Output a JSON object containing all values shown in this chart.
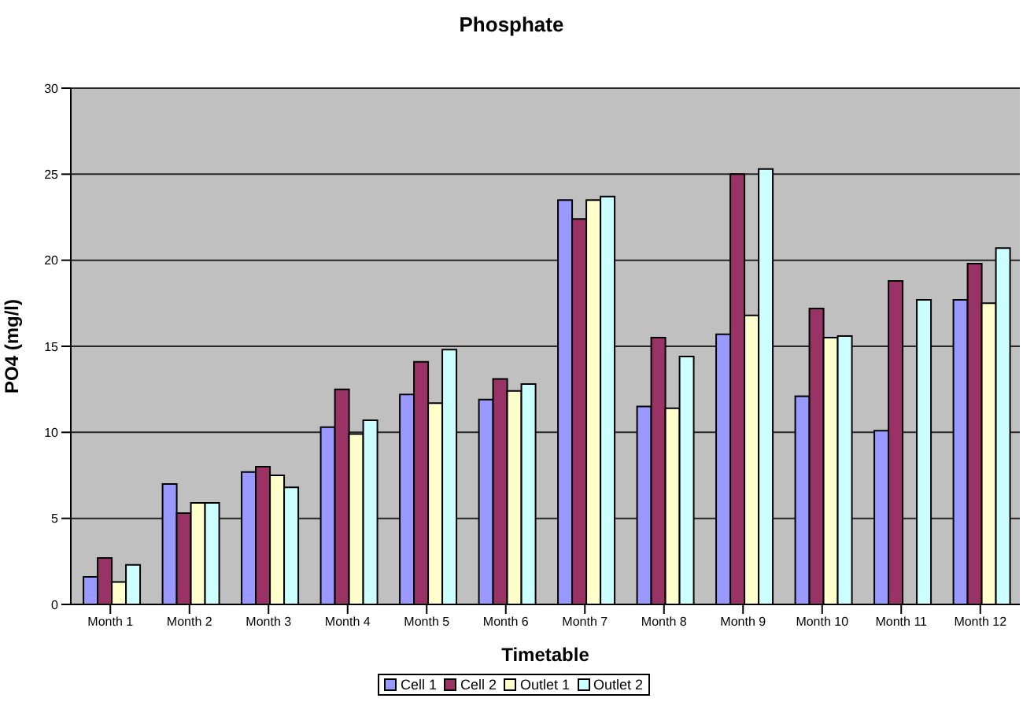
{
  "chart_data": {
    "type": "bar",
    "title": "Phosphate",
    "xlabel": "Timetable",
    "ylabel": "PO4 (mg/l)",
    "categories": [
      "Month 1",
      "Month 2",
      "Month 3",
      "Month 4",
      "Month 5",
      "Month 6",
      "Month 7",
      "Month 8",
      "Month 9",
      "Month 10",
      "Month 11",
      "Month 12"
    ],
    "series": [
      {
        "name": "Cell 1",
        "color": "#9999ff",
        "values": [
          1.6,
          7.0,
          7.7,
          10.3,
          12.2,
          11.9,
          23.5,
          11.5,
          15.7,
          12.1,
          10.1,
          17.7
        ]
      },
      {
        "name": "Cell 2",
        "color": "#993366",
        "values": [
          2.7,
          5.3,
          8.0,
          12.5,
          14.1,
          13.1,
          22.4,
          15.5,
          25.0,
          17.2,
          18.8,
          19.8
        ]
      },
      {
        "name": "Outlet 1",
        "color": "#ffffcc",
        "values": [
          1.3,
          5.9,
          7.5,
          9.9,
          11.7,
          12.4,
          23.5,
          11.4,
          16.8,
          15.5,
          null,
          17.5
        ]
      },
      {
        "name": "Outlet 2",
        "color": "#ccffff",
        "values": [
          2.3,
          5.9,
          6.8,
          10.7,
          14.8,
          12.8,
          23.7,
          14.4,
          25.3,
          15.6,
          17.7,
          20.7
        ]
      }
    ],
    "ylim": [
      0,
      30
    ],
    "yticks": [
      0,
      5,
      10,
      15,
      20,
      25,
      30
    ],
    "grid": "y",
    "legend": "bottom"
  }
}
